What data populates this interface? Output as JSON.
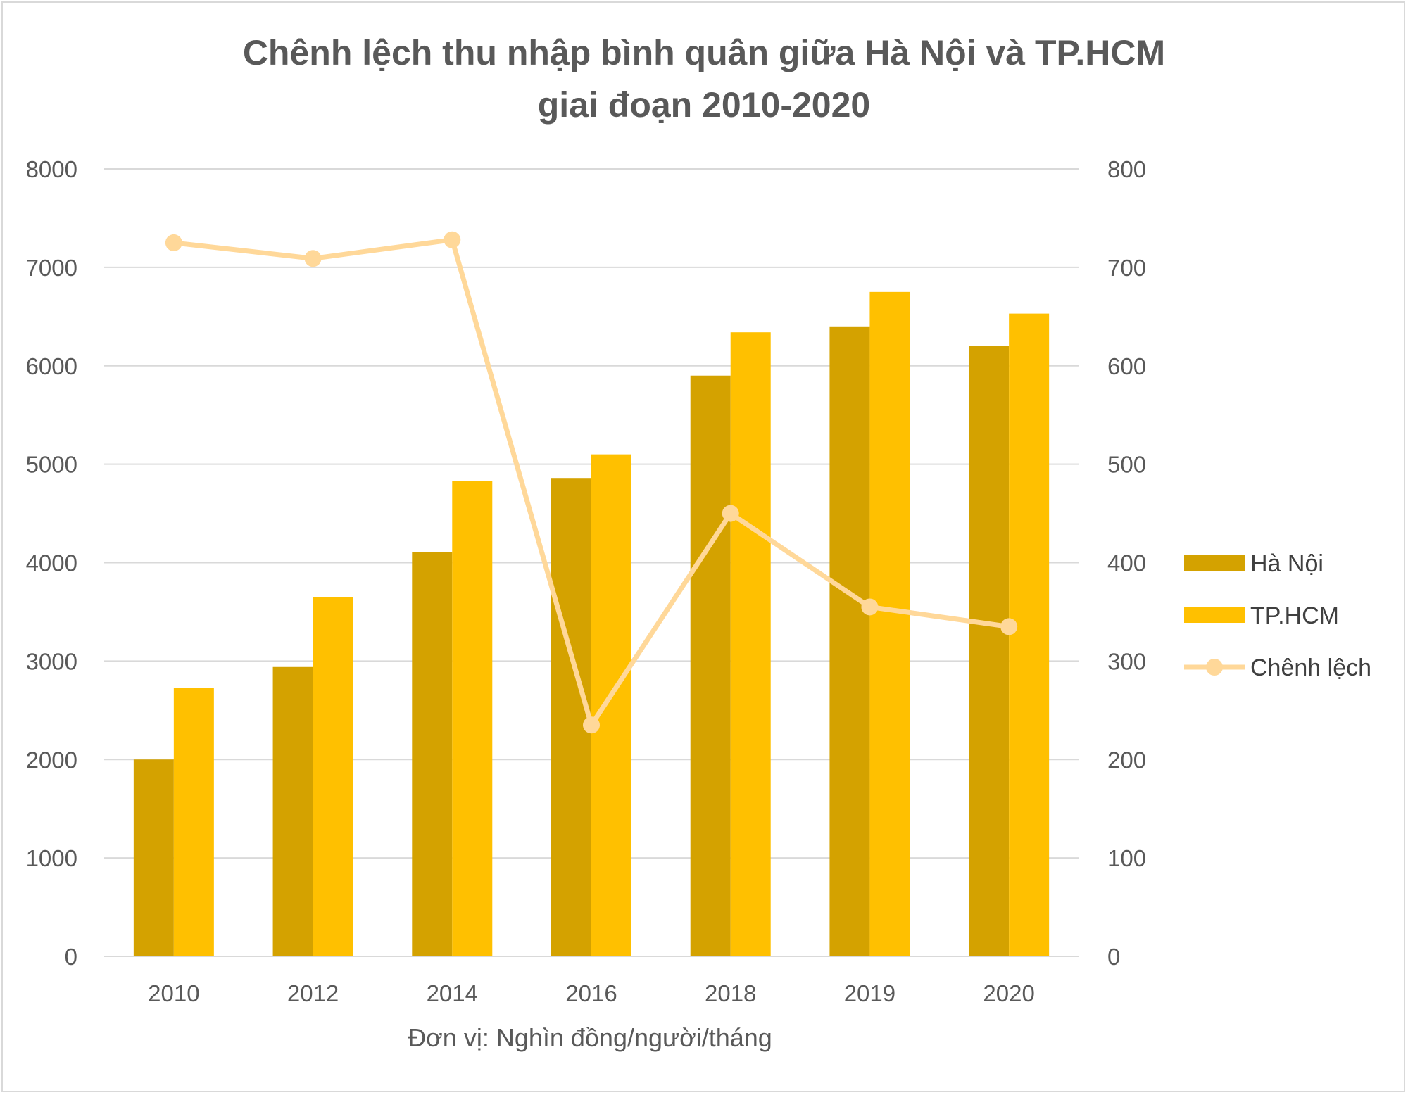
{
  "chart_data": {
    "type": "bar",
    "title_lines": [
      "Chênh lệch thu nhập bình quân giữa Hà Nội và TP.HCM",
      "giai đoạn 2010-2020"
    ],
    "xlabel": "Đơn vị: Nghìn đồng/người/tháng",
    "categories": [
      "2010",
      "2012",
      "2014",
      "2016",
      "2018",
      "2019",
      "2020"
    ],
    "y_left": {
      "min": 0,
      "max": 8000,
      "ticks": [
        "0",
        "1000",
        "2000",
        "3000",
        "4000",
        "5000",
        "6000",
        "7000",
        "8000"
      ]
    },
    "y_right": {
      "min": 0,
      "max": 800,
      "ticks": [
        "0",
        "100",
        "200",
        "300",
        "400",
        "500",
        "600",
        "700",
        "800"
      ]
    },
    "grid": true,
    "legend_position": "right",
    "series": [
      {
        "name": "Hà Nội",
        "kind": "bar",
        "axis": "left",
        "color": "#d4a200",
        "values": [
          2000,
          2940,
          4110,
          4860,
          5900,
          6400,
          6200
        ]
      },
      {
        "name": "TP.HCM",
        "kind": "bar",
        "axis": "left",
        "color": "#ffc000",
        "values": [
          2730,
          3650,
          4830,
          5100,
          6340,
          6750,
          6530
        ]
      },
      {
        "name": "Chênh lệch",
        "kind": "line",
        "axis": "right",
        "color": "#ffd899",
        "values": [
          725,
          709,
          728,
          235,
          450,
          355,
          335
        ]
      }
    ]
  }
}
